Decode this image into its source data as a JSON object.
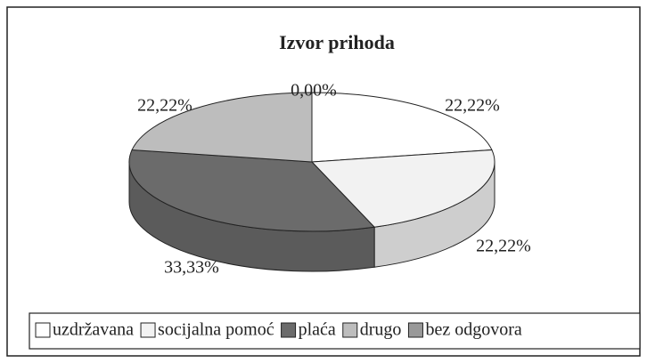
{
  "chart_data": {
    "type": "pie3d",
    "title": "Izvor prihoda",
    "categories": [
      "uzdržavana",
      "socijalna pomoć",
      "plaća",
      "drugo",
      "bez odgovora"
    ],
    "values": [
      22.22,
      22.22,
      33.33,
      22.22,
      0.0
    ],
    "value_labels": [
      "22,22%",
      "22,22%",
      "33,33%",
      "22,22%",
      "0,00%"
    ],
    "colors": [
      "#ffffff",
      "#f2f2f2",
      "#6b6b6b",
      "#bdbdbd",
      "#999999"
    ],
    "legend": "bottom"
  }
}
